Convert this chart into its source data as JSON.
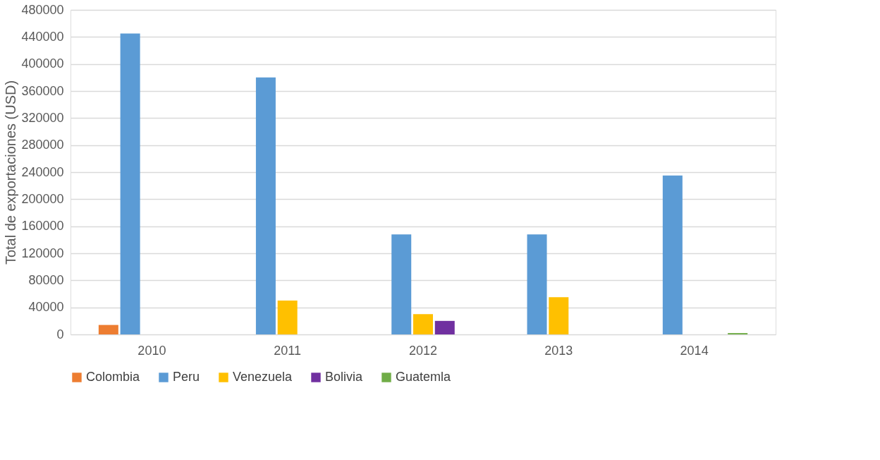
{
  "chart_data": {
    "type": "bar",
    "ylabel": "Total de exportaciones (USD)",
    "categories": [
      "2010",
      "2011",
      "2012",
      "2013",
      "2014"
    ],
    "series": [
      {
        "name": "Colombia",
        "color": "#ed7d31",
        "values": [
          14000,
          null,
          null,
          null,
          null
        ]
      },
      {
        "name": "Peru",
        "color": "#5b9bd5",
        "values": [
          445000,
          380000,
          148000,
          148000,
          235000
        ]
      },
      {
        "name": "Venezuela",
        "color": "#ffc000",
        "values": [
          null,
          50000,
          30000,
          55000,
          null
        ]
      },
      {
        "name": "Bolivia",
        "color": "#7030a0",
        "values": [
          null,
          null,
          20000,
          null,
          null
        ]
      },
      {
        "name": "Guatemla",
        "color": "#70ad47",
        "values": [
          null,
          null,
          null,
          null,
          2000
        ]
      }
    ],
    "ylim": [
      0,
      480000
    ],
    "yticks": [
      0,
      40000,
      80000,
      120000,
      160000,
      200000,
      240000,
      280000,
      320000,
      360000,
      400000,
      440000,
      480000
    ],
    "grid": "y",
    "legend": "bottom"
  }
}
